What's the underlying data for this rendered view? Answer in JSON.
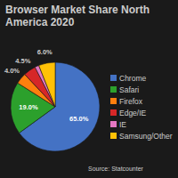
{
  "chart_data": {
    "type": "pie",
    "title": "Browser Market Share North America 2020",
    "categories": [
      "Chrome",
      "Safari",
      "Firefox",
      "Edge/IE",
      "IE",
      "Samsung/Other"
    ],
    "values": [
      65.0,
      19.0,
      4.0,
      4.5,
      1.5,
      6.0
    ],
    "value_labels": [
      "65.0%",
      "19.0%",
      "4.0%",
      "4.5%",
      null,
      "6.0%"
    ],
    "colors": [
      "#4472C4",
      "#2CA02C",
      "#FF7F0E",
      "#D62728",
      "#E377C2",
      "#FFC107"
    ],
    "data_labels": true,
    "legend": "right",
    "annotations": [
      "Source: Statcounter"
    ]
  }
}
